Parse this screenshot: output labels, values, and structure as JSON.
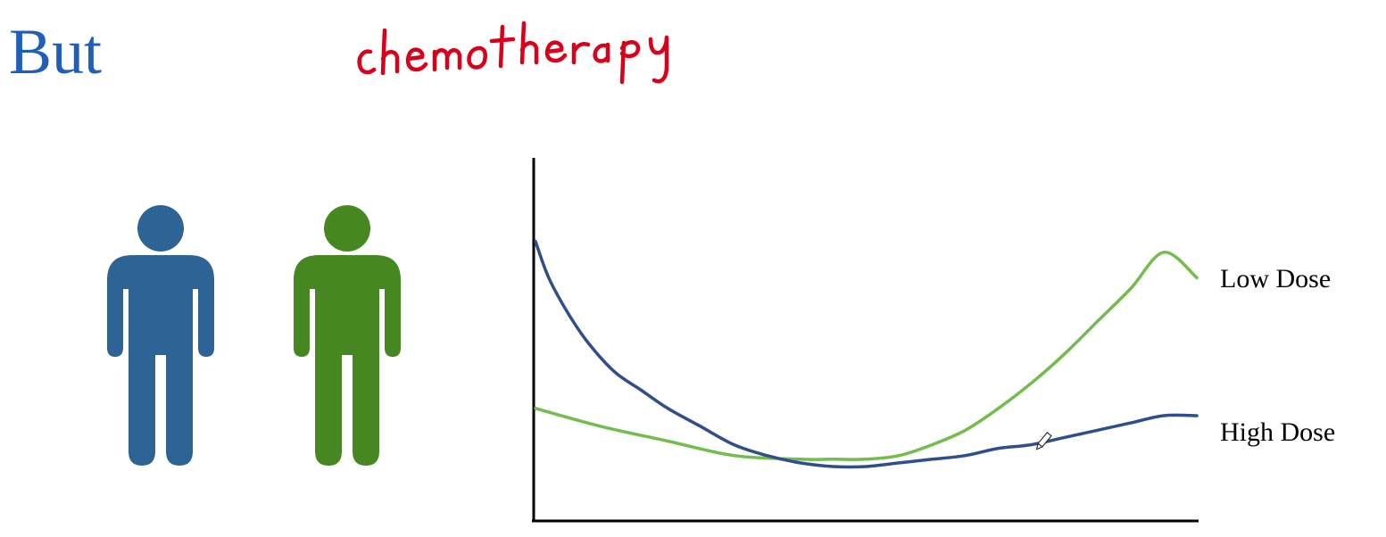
{
  "slide": {
    "title": "But",
    "title_color": "#1f5fb9",
    "handwritten_annotation": "chemotherapy",
    "annotation_color": "#d9001b"
  },
  "figures": [
    {
      "name": "person-blue",
      "color": "#2e6396"
    },
    {
      "name": "person-green",
      "color": "#478722"
    }
  ],
  "chart_data": {
    "type": "line",
    "title": "",
    "xlabel": "",
    "ylabel": "",
    "xlim": [
      0,
      100
    ],
    "ylim": [
      0,
      100
    ],
    "grid": false,
    "legend": "inline-right",
    "axis_color": "#000000",
    "series": [
      {
        "name": "Low Dose",
        "color": "#72bd4c",
        "x": [
          0,
          10,
          20,
          30,
          40,
          45,
          50,
          55,
          60,
          65,
          70,
          75,
          80,
          85,
          90,
          95,
          100
        ],
        "y": [
          31,
          26,
          22,
          18,
          17,
          17,
          17,
          18,
          21,
          25,
          31,
          38,
          46,
          55,
          64,
          74,
          67
        ]
      },
      {
        "name": "High Dose",
        "color": "#2f4e8a",
        "x": [
          0,
          2,
          5,
          8,
          12,
          16,
          20,
          25,
          30,
          35,
          40,
          45,
          50,
          55,
          60,
          65,
          70,
          75,
          80,
          85,
          90,
          95,
          100
        ],
        "y": [
          77,
          67,
          57,
          49,
          41,
          36,
          31,
          26,
          21,
          18,
          16,
          15,
          15,
          16,
          17,
          18,
          20,
          21,
          23,
          25,
          27,
          29,
          29
        ]
      }
    ]
  }
}
